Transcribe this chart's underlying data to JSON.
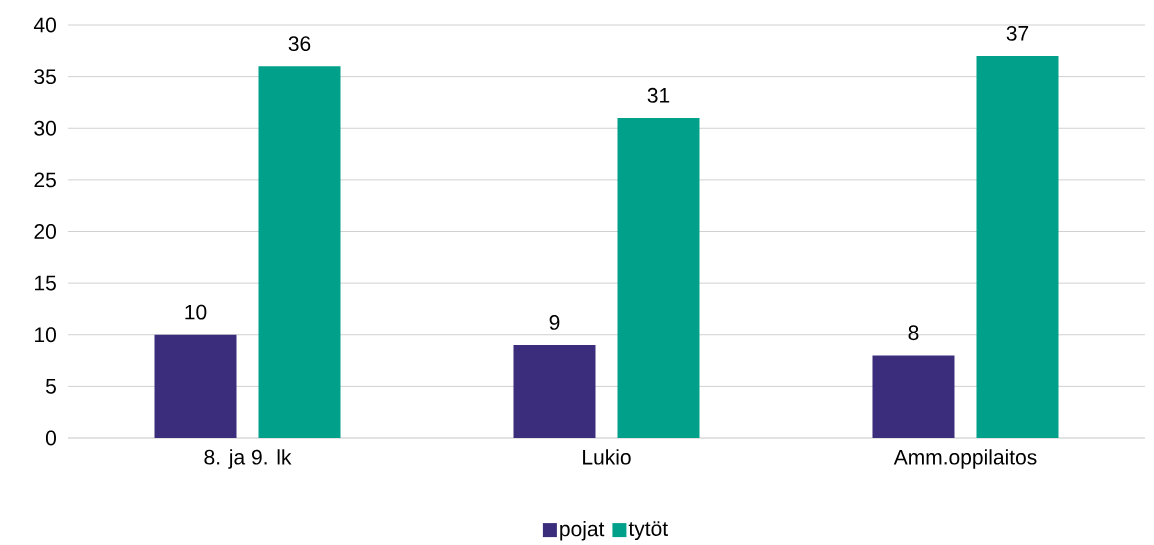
{
  "chart_data": {
    "type": "bar",
    "categories": [
      "8. ja 9. lk",
      "Lukio",
      "Amm.oppilaitos"
    ],
    "series": [
      {
        "name": "pojat",
        "color": "#3c2c7c",
        "values": [
          10,
          9,
          8
        ]
      },
      {
        "name": "tytöt",
        "color": "#00a08a",
        "values": [
          36,
          31,
          37
        ]
      }
    ],
    "ylim": [
      0,
      40
    ],
    "yticks": [
      0,
      5,
      10,
      15,
      20,
      25,
      30,
      35,
      40
    ],
    "grid": "y",
    "legend": "bottom",
    "data_labels": true
  }
}
